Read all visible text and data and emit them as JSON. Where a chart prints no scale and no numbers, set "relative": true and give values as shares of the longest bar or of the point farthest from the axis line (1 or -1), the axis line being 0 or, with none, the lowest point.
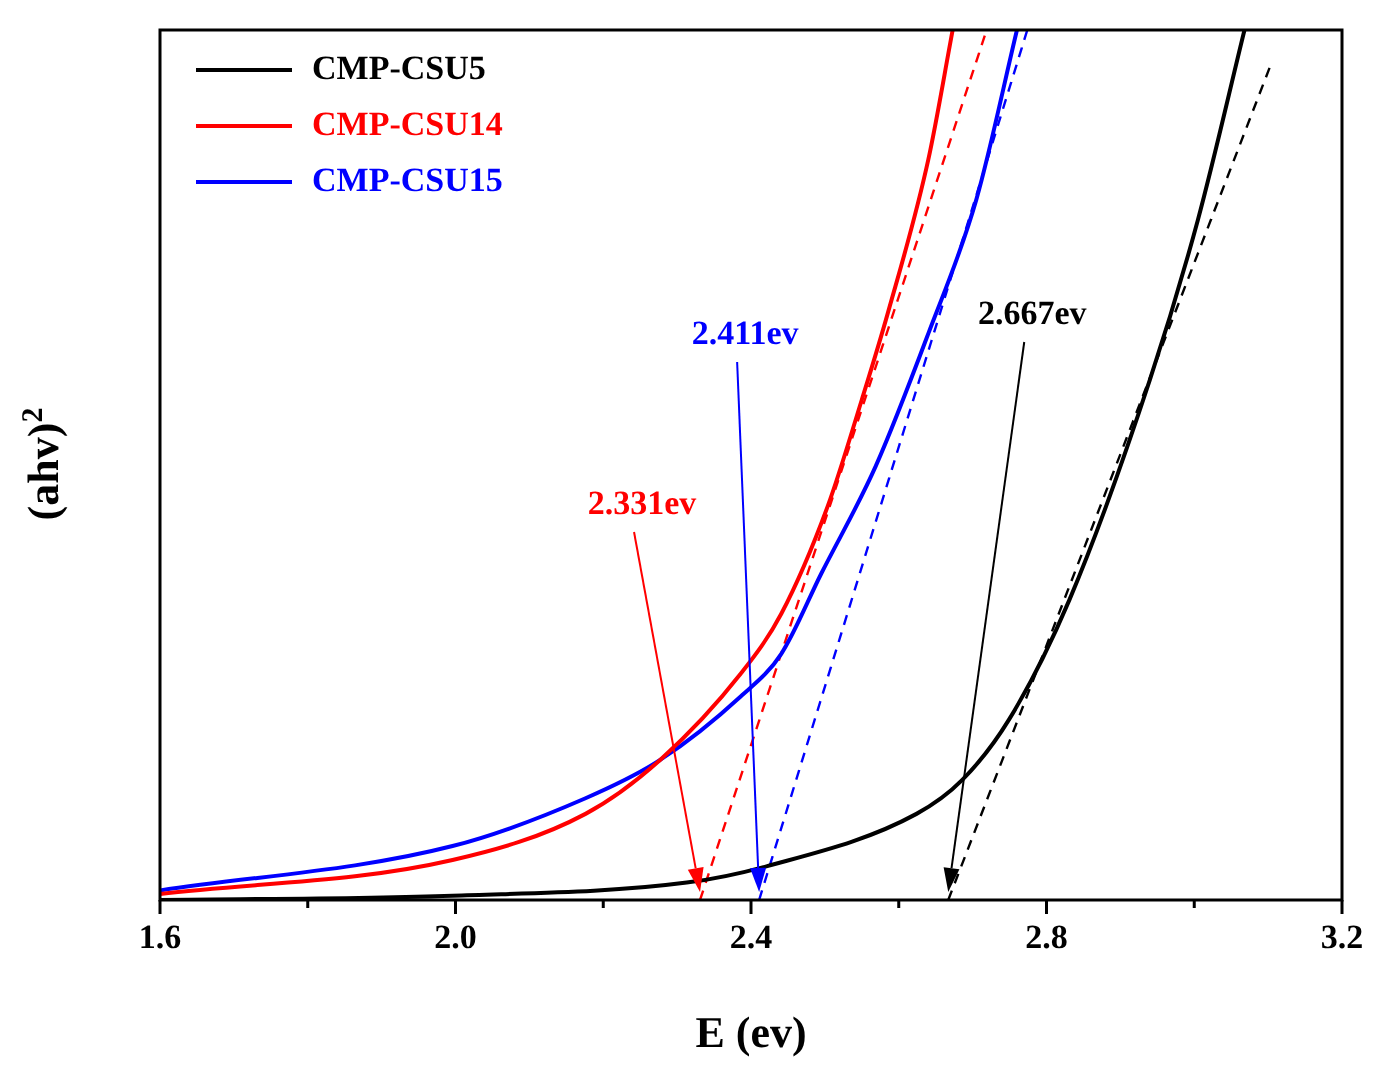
{
  "chart_data": {
    "type": "line",
    "xlabel": "E (ev)",
    "ylabel": "(ahv)$^{2}$",
    "relative": true,
    "xlim": [
      1.6,
      3.2
    ],
    "xticks": [
      {
        "value": 1.6,
        "label": "1.6"
      },
      {
        "value": 1.8,
        "label": null
      },
      {
        "value": 2.0,
        "label": "2.0"
      },
      {
        "value": 2.2,
        "label": null
      },
      {
        "value": 2.4,
        "label": "2.4"
      },
      {
        "value": 2.6,
        "label": null
      },
      {
        "value": 2.8,
        "label": "2.8"
      },
      {
        "value": 3.0,
        "label": null
      },
      {
        "value": 3.2,
        "label": "3.2"
      }
    ],
    "legend": "top left",
    "marker": "none",
    "series": [
      {
        "name": "CMP-CSU5",
        "color": "#000000",
        "x": [
          1.6,
          1.996,
          2.313,
          2.422,
          2.624,
          2.686,
          2.749,
          2.831,
          2.94,
          3.005,
          3.068
        ],
        "values": [
          0,
          0.005,
          0.02,
          0.039,
          0.099,
          0.138,
          0.207,
          0.345,
          0.598,
          0.782,
          1.0
        ]
      },
      {
        "name": "CMP-CSU14",
        "color": "#ff0000",
        "x": [
          1.6,
          1.996,
          2.176,
          2.277,
          2.386,
          2.441,
          2.504,
          2.55,
          2.585,
          2.64,
          2.673
        ],
        "values": [
          0.007,
          0.046,
          0.099,
          0.161,
          0.26,
          0.329,
          0.453,
          0.575,
          0.674,
          0.851,
          1.0
        ]
      },
      {
        "name": "CMP-CSU15",
        "color": "#0000ff",
        "x": [
          1.6,
          1.996,
          2.176,
          2.277,
          2.386,
          2.441,
          2.495,
          2.569,
          2.64,
          2.705,
          2.76
        ],
        "values": [
          0.011,
          0.062,
          0.117,
          0.161,
          0.234,
          0.283,
          0.375,
          0.499,
          0.651,
          0.805,
          1.0
        ]
      },
      {
        "color": "#000000",
        "line_style": "dashed",
        "x": [
          2.667,
          3.104
        ],
        "values": [
          0,
          0.961
        ]
      },
      {
        "color": "#ff0000",
        "line_style": "dashed",
        "x": [
          2.331,
          2.719
        ],
        "values": [
          0,
          1.0
        ]
      },
      {
        "color": "#0000ff",
        "line_style": "dashed",
        "x": [
          2.411,
          2.774
        ],
        "values": [
          0,
          1.0
        ]
      }
    ],
    "annotations": [
      "2.667ev",
      "2.331ev",
      "2.411ev"
    ]
  }
}
